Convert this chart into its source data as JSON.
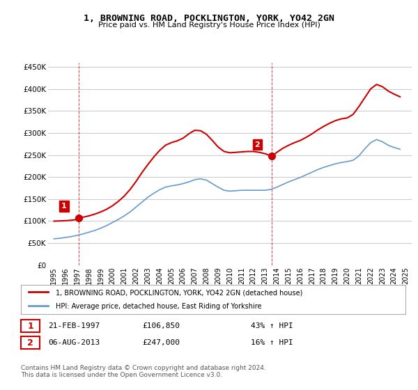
{
  "title": "1, BROWNING ROAD, POCKLINGTON, YORK, YO42 2GN",
  "subtitle": "Price paid vs. HM Land Registry's House Price Index (HPI)",
  "legend_label_red": "1, BROWNING ROAD, POCKLINGTON, YORK, YO42 2GN (detached house)",
  "legend_label_blue": "HPI: Average price, detached house, East Riding of Yorkshire",
  "transaction1_label": "1",
  "transaction1_date": "21-FEB-1997",
  "transaction1_price": "£106,850",
  "transaction1_hpi": "43% ↑ HPI",
  "transaction2_label": "2",
  "transaction2_date": "06-AUG-2013",
  "transaction2_price": "£247,000",
  "transaction2_hpi": "16% ↑ HPI",
  "footer": "Contains HM Land Registry data © Crown copyright and database right 2024.\nThis data is licensed under the Open Government Licence v3.0.",
  "ylim": [
    0,
    460000
  ],
  "yticks": [
    0,
    50000,
    100000,
    150000,
    200000,
    250000,
    300000,
    350000,
    400000,
    450000
  ],
  "red_color": "#cc0000",
  "blue_color": "#6699cc",
  "transaction_dot_color": "#cc0000",
  "vline_color": "#cc0000",
  "grid_color": "#cccccc",
  "bg_color": "#ffffff",
  "marker1_x": 1997.12,
  "marker1_y": 106850,
  "marker2_x": 2013.59,
  "marker2_y": 247000,
  "red_x": [
    1995.0,
    1995.5,
    1996.0,
    1996.5,
    1997.0,
    1997.12,
    1997.5,
    1998.0,
    1998.5,
    1999.0,
    1999.5,
    2000.0,
    2000.5,
    2001.0,
    2001.5,
    2002.0,
    2002.5,
    2003.0,
    2003.5,
    2004.0,
    2004.5,
    2005.0,
    2005.5,
    2006.0,
    2006.5,
    2007.0,
    2007.5,
    2008.0,
    2008.5,
    2009.0,
    2009.5,
    2010.0,
    2010.5,
    2011.0,
    2011.5,
    2012.0,
    2012.5,
    2013.0,
    2013.59,
    2014.0,
    2014.5,
    2015.0,
    2015.5,
    2016.0,
    2016.5,
    2017.0,
    2017.5,
    2018.0,
    2018.5,
    2019.0,
    2019.5,
    2020.0,
    2020.5,
    2021.0,
    2021.5,
    2022.0,
    2022.5,
    2023.0,
    2023.5,
    2024.0,
    2024.5
  ],
  "red_y": [
    100000,
    100500,
    101000,
    102000,
    104000,
    106850,
    109000,
    112000,
    116000,
    121000,
    127000,
    135000,
    145000,
    157000,
    172000,
    190000,
    210000,
    228000,
    245000,
    260000,
    272000,
    278000,
    282000,
    288000,
    298000,
    306000,
    305000,
    297000,
    283000,
    268000,
    258000,
    255000,
    256000,
    257000,
    258000,
    258000,
    256000,
    253000,
    247000,
    256000,
    265000,
    272000,
    278000,
    283000,
    290000,
    298000,
    307000,
    315000,
    322000,
    328000,
    332000,
    334000,
    342000,
    360000,
    380000,
    400000,
    410000,
    405000,
    395000,
    388000,
    382000
  ],
  "blue_x": [
    1995.0,
    1995.5,
    1996.0,
    1996.5,
    1997.0,
    1997.5,
    1998.0,
    1998.5,
    1999.0,
    1999.5,
    2000.0,
    2000.5,
    2001.0,
    2001.5,
    2002.0,
    2002.5,
    2003.0,
    2003.5,
    2004.0,
    2004.5,
    2005.0,
    2005.5,
    2006.0,
    2006.5,
    2007.0,
    2007.5,
    2008.0,
    2008.5,
    2009.0,
    2009.5,
    2010.0,
    2010.5,
    2011.0,
    2011.5,
    2012.0,
    2012.5,
    2013.0,
    2013.5,
    2014.0,
    2014.5,
    2015.0,
    2015.5,
    2016.0,
    2016.5,
    2017.0,
    2017.5,
    2018.0,
    2018.5,
    2019.0,
    2019.5,
    2020.0,
    2020.5,
    2021.0,
    2021.5,
    2022.0,
    2022.5,
    2023.0,
    2023.5,
    2024.0,
    2024.5
  ],
  "blue_y": [
    60000,
    61000,
    63000,
    65000,
    68000,
    71000,
    75000,
    79000,
    84000,
    90000,
    97000,
    104000,
    112000,
    121000,
    132000,
    143000,
    154000,
    163000,
    171000,
    177000,
    180000,
    182000,
    185000,
    189000,
    194000,
    196000,
    193000,
    185000,
    177000,
    170000,
    168000,
    169000,
    170000,
    170000,
    170000,
    170000,
    170000,
    172000,
    177000,
    183000,
    189000,
    194000,
    199000,
    205000,
    211000,
    217000,
    222000,
    226000,
    230000,
    233000,
    235000,
    238000,
    248000,
    264000,
    278000,
    285000,
    280000,
    272000,
    267000,
    263000
  ],
  "xtick_years": [
    1995,
    1996,
    1997,
    1998,
    1999,
    2000,
    2001,
    2002,
    2003,
    2004,
    2005,
    2006,
    2007,
    2008,
    2009,
    2010,
    2011,
    2012,
    2013,
    2014,
    2015,
    2016,
    2017,
    2018,
    2019,
    2020,
    2021,
    2022,
    2023,
    2024,
    2025
  ]
}
